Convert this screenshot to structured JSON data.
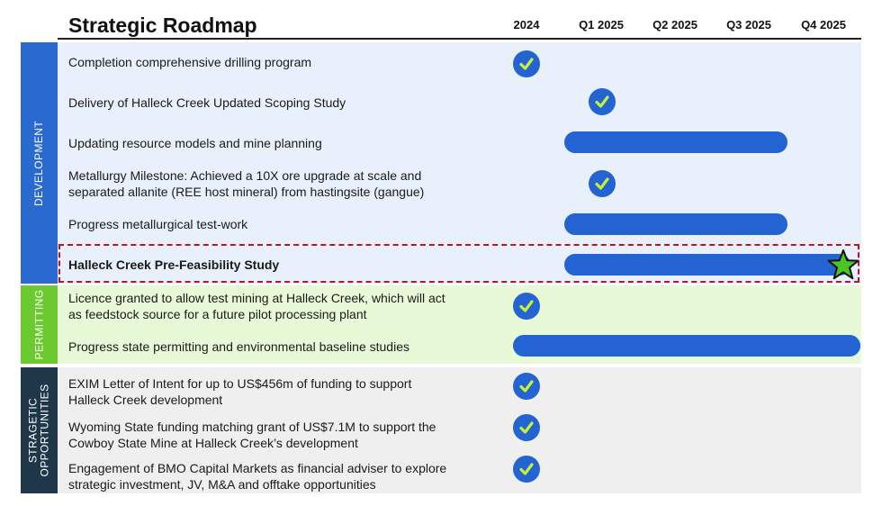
{
  "title": "Strategic Roadmap",
  "columns": [
    "2024",
    "Q1 2025",
    "Q2 2025",
    "Q3 2025",
    "Q4 2025"
  ],
  "sections": [
    {
      "label": "DEVELOPMENT",
      "color": "#2a6ad0",
      "bg": "#e8f0fb"
    },
    {
      "label": "PERMITTING",
      "color": "#6bcb2e",
      "bg": "#e8f9d8"
    },
    {
      "label": "STRAGETIC OPPORTUNITIES",
      "label_line1": "STRAGETIC",
      "label_line2": "OPPORTUNITIES",
      "color": "#1f3849",
      "bg": "#efefef"
    }
  ],
  "tasks": [
    {
      "text": "Completion comprehensive drilling program",
      "status": "complete",
      "milestone_column": "2024"
    },
    {
      "text": "Delivery of Halleck Creek Updated Scoping Study",
      "status": "complete",
      "milestone_column": "Q1 2025"
    },
    {
      "text": "Updating resource models and mine planning",
      "status": "in-progress",
      "from": "Q1 2025",
      "to": "Q3 2025"
    },
    {
      "line1": "Metallurgy Milestone: Achieved a 10X ore upgrade at scale and",
      "line2": "separated allanite (REE host mineral) from hastingsite (gangue)",
      "status": "complete",
      "milestone_column": "Q1 2025"
    },
    {
      "text": "Progress metallurgical test-work",
      "status": "in-progress",
      "from": "Q1 2025",
      "to": "Q3 2025"
    },
    {
      "text": "Halleck Creek Pre-Feasibility Study",
      "status": "in-progress",
      "from": "Q1 2025",
      "to": "Q4 2025",
      "highlighted": true,
      "end_marker": "star"
    },
    {
      "line1": "Licence granted to allow test mining at Halleck Creek, which will act",
      "line2": "as feedstock source for a future pilot processing plant",
      "status": "complete",
      "milestone_column": "2024"
    },
    {
      "text": "Progress state permitting and environmental baseline studies",
      "status": "in-progress",
      "from": "2024",
      "to": "Q4 2025"
    },
    {
      "line1": "EXIM Letter of Intent for up to US$456m of funding to support",
      "line2": "Halleck Creek development",
      "status": "complete",
      "milestone_column": "2024"
    },
    {
      "line1": "Wyoming State funding matching grant of US$7.1M to support the",
      "line2": "Cowboy State Mine at Halleck Creek’s development",
      "status": "complete",
      "milestone_column": "2024"
    },
    {
      "line1": "Engagement of BMO Capital Markets as financial adviser to explore",
      "line2": "strategic investment, JV, M&A and offtake opportunities",
      "status": "complete",
      "milestone_column": "2024"
    }
  ],
  "colors": {
    "bar": "#2364d2",
    "check": "#2364d2",
    "checkmark": "#c6f03a",
    "highlight_border": "#c1121f",
    "star_fill": "#4cc427"
  },
  "icons": {
    "complete": "check-circle-icon",
    "end_marker": "star-icon"
  }
}
